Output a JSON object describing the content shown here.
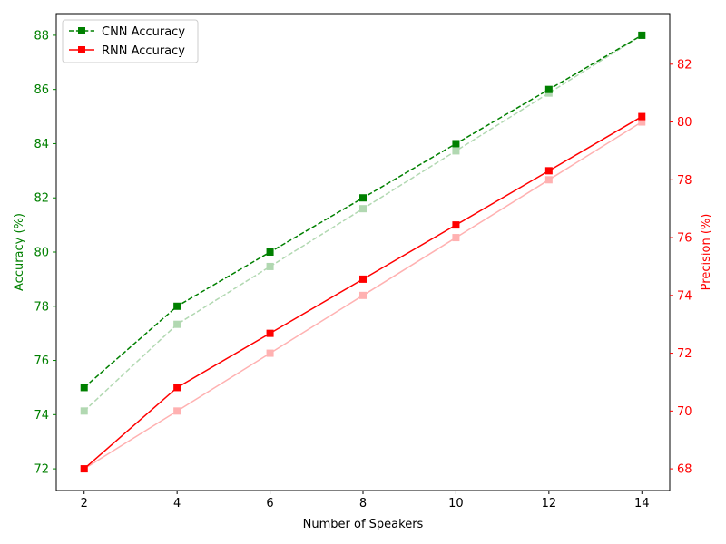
{
  "chart_data": {
    "type": "line",
    "x": [
      2,
      4,
      6,
      8,
      10,
      12,
      14
    ],
    "xlabel": "Number of Speakers",
    "ylabel_left": "Accuracy (%)",
    "ylabel_right": "Precision (%)",
    "ylim_left": [
      71.2,
      88.8
    ],
    "ylim_right": [
      67.25,
      83.75
    ],
    "xlim": [
      1.4,
      14.6
    ],
    "x_ticks": [
      2,
      4,
      6,
      8,
      10,
      12,
      14
    ],
    "y_ticks_left": [
      72,
      74,
      76,
      78,
      80,
      82,
      84,
      86,
      88
    ],
    "y_ticks_right": [
      68,
      70,
      72,
      74,
      76,
      78,
      80,
      82
    ],
    "legend_position": "top-left",
    "grid": false,
    "series": [
      {
        "name": "CNN Accuracy",
        "axis": "left",
        "color": "#008000",
        "dash": true,
        "alpha": 1,
        "values": [
          75,
          78,
          80,
          82,
          84,
          86,
          88
        ]
      },
      {
        "name": "RNN Accuracy",
        "axis": "left",
        "color": "#ff0000",
        "dash": false,
        "alpha": 1,
        "values": [
          72,
          75,
          77,
          79,
          81,
          83,
          85
        ]
      },
      {
        "axis": "right",
        "color": "#008000",
        "dash": true,
        "alpha": 0.3,
        "values": [
          70,
          73,
          75,
          77,
          79,
          81,
          83
        ]
      },
      {
        "axis": "right",
        "color": "#ff0000",
        "dash": false,
        "alpha": 0.3,
        "values": [
          68,
          70,
          72,
          74,
          76,
          78,
          80
        ]
      }
    ]
  }
}
